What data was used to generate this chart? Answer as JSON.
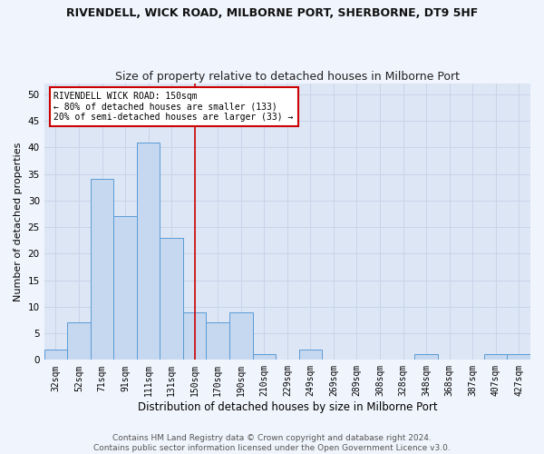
{
  "title": "RIVENDELL, WICK ROAD, MILBORNE PORT, SHERBORNE, DT9 5HF",
  "subtitle": "Size of property relative to detached houses in Milborne Port",
  "xlabel": "Distribution of detached houses by size in Milborne Port",
  "ylabel": "Number of detached properties",
  "categories": [
    "32sqm",
    "52sqm",
    "71sqm",
    "91sqm",
    "111sqm",
    "131sqm",
    "150sqm",
    "170sqm",
    "190sqm",
    "210sqm",
    "229sqm",
    "249sqm",
    "269sqm",
    "289sqm",
    "308sqm",
    "328sqm",
    "348sqm",
    "368sqm",
    "387sqm",
    "407sqm",
    "427sqm"
  ],
  "values": [
    2,
    7,
    34,
    27,
    41,
    23,
    9,
    7,
    9,
    1,
    0,
    2,
    0,
    0,
    0,
    0,
    1,
    0,
    0,
    1,
    1
  ],
  "bar_color": "#c5d8f0",
  "bar_edge_color": "#5b9bd5",
  "reference_line_x": 6,
  "annotation_text": "RIVENDELL WICK ROAD: 150sqm\n← 80% of detached houses are smaller (133)\n20% of semi-detached houses are larger (33) →",
  "annotation_box_color": "#ffffff",
  "annotation_box_edge_color": "#cc0000",
  "ylim": [
    0,
    52
  ],
  "yticks": [
    0,
    5,
    10,
    15,
    20,
    25,
    30,
    35,
    40,
    45,
    50
  ],
  "grid_color": "#c8d4e8",
  "background_color": "#dce6f5",
  "fig_background_color": "#f0f4fc",
  "footer_line1": "Contains HM Land Registry data © Crown copyright and database right 2024.",
  "footer_line2": "Contains public sector information licensed under the Open Government Licence v3.0.",
  "ref_line_color": "#cc0000",
  "title_fontsize": 9,
  "subtitle_fontsize": 9,
  "ylabel_fontsize": 8,
  "xlabel_fontsize": 8.5,
  "tick_fontsize": 7,
  "annotation_fontsize": 7,
  "footer_fontsize": 6.5
}
